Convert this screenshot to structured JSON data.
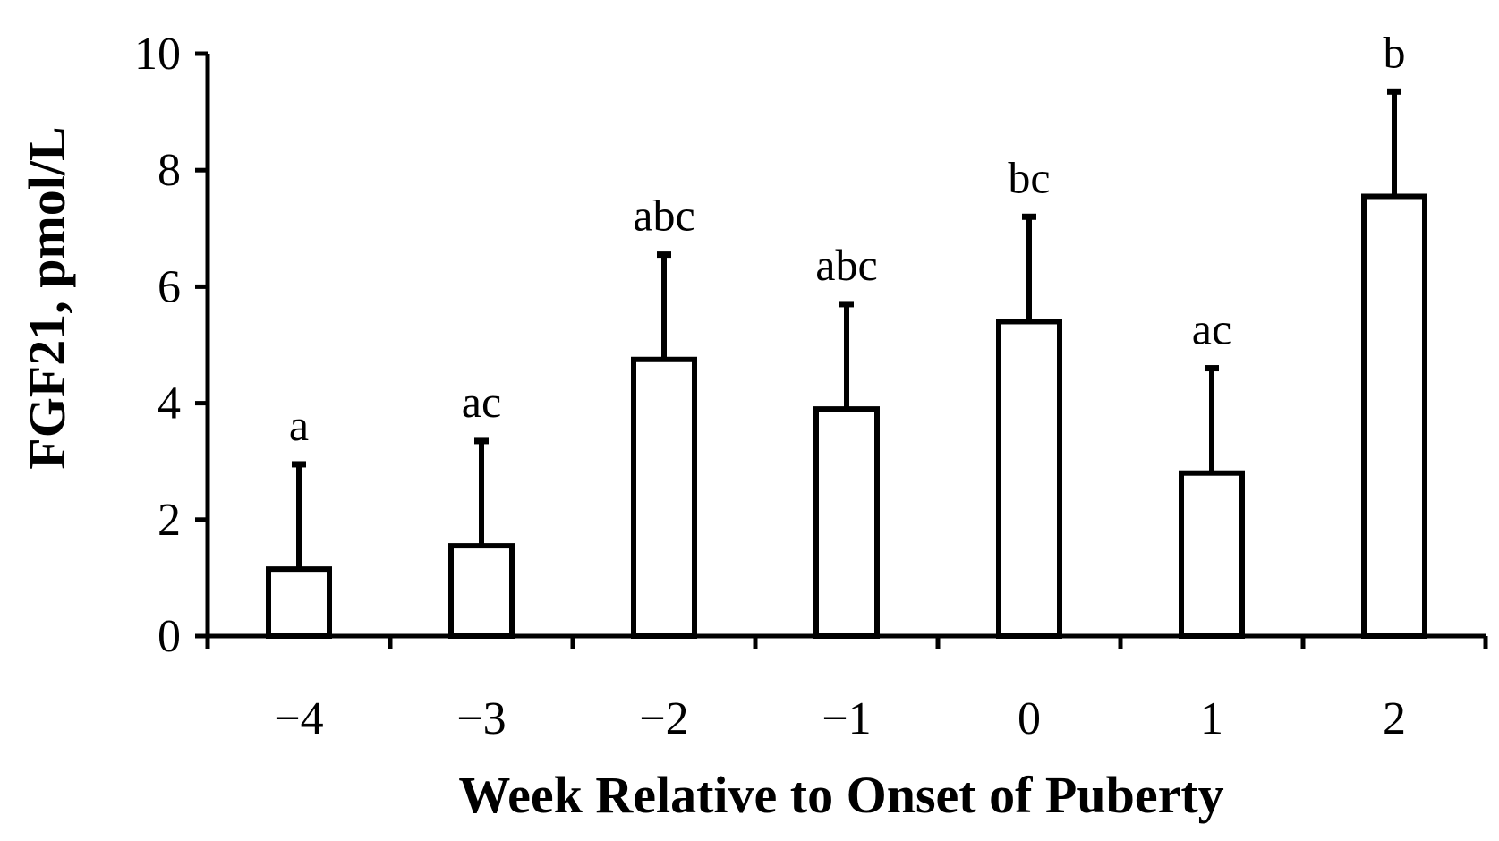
{
  "chart_data": {
    "type": "bar",
    "title": "",
    "xlabel": "Week Relative to Onset of Puberty",
    "ylabel": "FGF21, pmol/L",
    "categories": [
      "−4",
      "−3",
      "−2",
      "−1",
      "0",
      "1",
      "2"
    ],
    "values": [
      1.15,
      1.55,
      4.75,
      3.9,
      5.4,
      2.8,
      7.55
    ],
    "error_upper": [
      2.95,
      3.35,
      6.55,
      5.7,
      7.2,
      4.6,
      9.35
    ],
    "significance_labels": [
      "a",
      "ac",
      "abc",
      "abc",
      "bc",
      "ac",
      "b"
    ],
    "ylim": [
      0,
      10
    ],
    "yticks": [
      "0",
      "2",
      "4",
      "6",
      "8",
      "10"
    ],
    "grid": false,
    "legend": "none",
    "bar_fill": "#ffffff",
    "bar_stroke": "#000000"
  }
}
